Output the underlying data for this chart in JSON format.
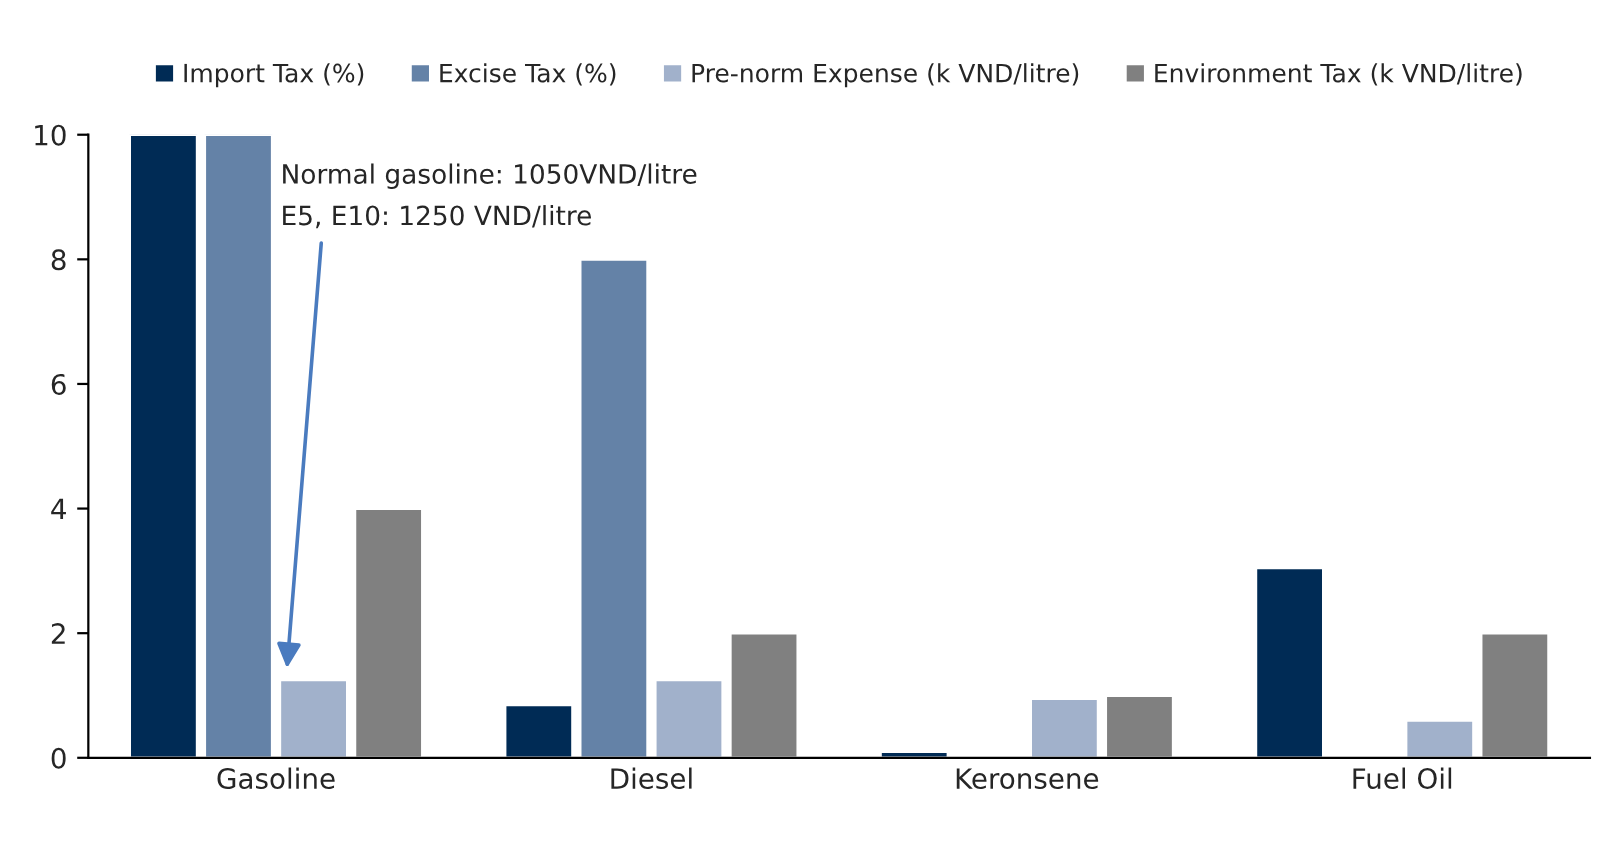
{
  "chart_data": {
    "type": "bar",
    "categories": [
      "Gasoline",
      "Diesel",
      "Keronsene",
      "Fuel Oil"
    ],
    "series": [
      {
        "name": "Import Tax (%)",
        "color": "#002b55",
        "values": [
          10,
          0.85,
          0.1,
          3.05
        ]
      },
      {
        "name": "Excise Tax (%)",
        "color": "#6482a7",
        "values": [
          10,
          8,
          null,
          null
        ]
      },
      {
        "name": "Pre-norm Expense (k VND/litre)",
        "color": "#a1b1cb",
        "values": [
          1.25,
          1.25,
          0.95,
          0.6
        ]
      },
      {
        "name": "Environment Tax (k VND/litre)",
        "color": "#808080",
        "values": [
          4,
          2,
          1,
          2
        ]
      }
    ],
    "ylim": [
      0,
      10
    ],
    "yticks": [
      0,
      2,
      4,
      6,
      8,
      10
    ],
    "annotations": [
      "Normal gasoline: 1050VND/litre\nE5, E10: 1250 VND/litre"
    ],
    "legend": "top",
    "grid": false
  }
}
